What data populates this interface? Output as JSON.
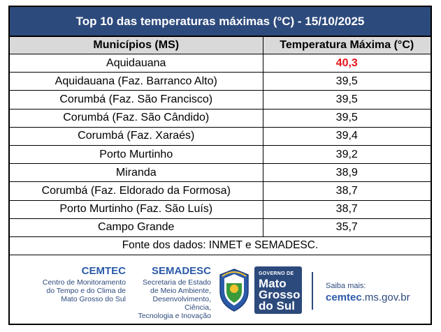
{
  "title": "Top 10 das temperaturas máximas (°C) - 15/10/2025",
  "headers": {
    "municipio": "Municípios (MS)",
    "temperatura": "Temperatura Máxima (°C)"
  },
  "rows": [
    {
      "municipio": "Aquidauana",
      "temperatura": "40,3"
    },
    {
      "municipio": "Aquidauana (Faz. Barranco Alto)",
      "temperatura": "39,5"
    },
    {
      "municipio": "Corumbá (Faz. São Francisco)",
      "temperatura": "39,5"
    },
    {
      "municipio": "Corumbá (Faz. São Cândido)",
      "temperatura": "39,5"
    },
    {
      "municipio": "Corumbá (Faz. Xaraés)",
      "temperatura": "39,4"
    },
    {
      "municipio": "Porto Murtinho",
      "temperatura": "39,2"
    },
    {
      "municipio": "Miranda",
      "temperatura": "38,9"
    },
    {
      "municipio": "Corumbá (Faz. Eldorado da Formosa)",
      "temperatura": "38,7"
    },
    {
      "municipio": "Porto Murtinho (Faz. São Luís)",
      "temperatura": "38,7"
    },
    {
      "municipio": "Campo Grande",
      "temperatura": "35,7"
    }
  ],
  "source": "Fonte dos dados: INMET e SEMADESC.",
  "footer": {
    "cemtec_name": "CEMTEC",
    "cemtec_desc": [
      "Centro de Monitoramento",
      "do Tempo e do Clima de",
      "Mato Grosso do Sul"
    ],
    "semadesc_name": "SEMADESC",
    "semadesc_desc": [
      "Secretaria de Estado",
      "de Meio Ambiente,",
      "Desenvolvimento, Ciência,",
      "Tecnologia e Inovação"
    ],
    "gov_line1": "GOVERNO DE",
    "gov_line2": [
      "Mato",
      "Grosso",
      "do Sul"
    ],
    "saiba": "Saiba mais:",
    "site_bold": "cemtec",
    "site_rest": ".ms.gov.br"
  },
  "colors": {
    "header_bg": "#2d4a7c",
    "col_header_bg": "#d9d9d9",
    "highlight": "#e8141b"
  }
}
